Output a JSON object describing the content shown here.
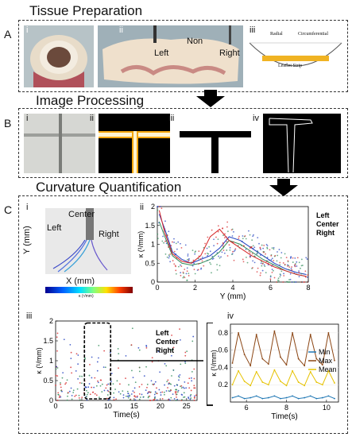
{
  "sections": {
    "a_title": "Tissue Preparation",
    "b_title": "Image Processing",
    "c_title": "Curvature Quantification"
  },
  "panel_letters": {
    "a": "A",
    "b": "B",
    "c": "C"
  },
  "subpanels": {
    "a": [
      "i",
      "ii",
      "iii"
    ],
    "b": [
      "i",
      "ii",
      "iii",
      "iv"
    ],
    "c": [
      "i",
      "ii",
      "iii",
      "iv"
    ]
  },
  "a_ii_labels": {
    "left": "Left",
    "non": "Non",
    "right": "Right"
  },
  "a_iii_labels": {
    "radial": "Radial",
    "circumferential": "Circumferential",
    "strip": "Leaflet Strip"
  },
  "c_i_labels": {
    "center": "Center",
    "left": "Left",
    "right": "Right",
    "y_axis": "Y (mm)",
    "x_axis": "X (mm)",
    "colorbar": "κ (¹/mm)"
  },
  "colors": {
    "left": "#1f3fbf",
    "center": "#2e8b57",
    "right": "#d62728",
    "min": "#1f77b4",
    "max": "#8b4513",
    "mean": "#e6c200"
  },
  "chart_data": [
    {
      "id": "c_ii",
      "type": "scatter",
      "xlabel": "Y (mm)",
      "ylabel": "κ (¹/mm)",
      "xlim": [
        0,
        8
      ],
      "ylim": [
        0,
        2
      ],
      "xticks": [
        "0",
        "2",
        "4",
        "6",
        "8"
      ],
      "yticks": [
        "0",
        "0.5",
        "1",
        "1.5",
        "2"
      ],
      "legend": [
        "Left",
        "Center",
        "Right"
      ],
      "legend_position": "top-right",
      "series": [
        {
          "name": "Left",
          "x": [
            0.1,
            0.4,
            0.8,
            1.3,
            1.8,
            2.3,
            2.8,
            3.3,
            3.8,
            4.4,
            5.0,
            5.6,
            6.2,
            6.8,
            7.4,
            7.9
          ],
          "y": [
            1.8,
            1.4,
            0.8,
            0.6,
            0.5,
            0.6,
            0.7,
            0.9,
            1.2,
            1.1,
            0.9,
            0.7,
            0.5,
            0.35,
            0.25,
            0.2
          ]
        },
        {
          "name": "Center",
          "x": [
            0.1,
            0.4,
            0.8,
            1.3,
            1.8,
            2.3,
            2.8,
            3.3,
            3.8,
            4.4,
            5.0,
            5.6,
            6.2,
            6.8,
            7.4,
            7.9
          ],
          "y": [
            1.6,
            1.2,
            0.7,
            0.5,
            0.45,
            0.5,
            0.6,
            0.8,
            1.1,
            1.0,
            0.8,
            0.6,
            0.45,
            0.3,
            0.2,
            0.15
          ]
        },
        {
          "name": "Right",
          "x": [
            0.1,
            0.4,
            0.8,
            1.3,
            1.8,
            2.3,
            2.8,
            3.3,
            3.8,
            4.4,
            5.0,
            5.6,
            6.2,
            6.8,
            7.4,
            7.9
          ],
          "y": [
            1.9,
            1.3,
            0.75,
            0.55,
            0.5,
            0.7,
            1.2,
            1.4,
            1.1,
            0.9,
            0.7,
            0.55,
            0.4,
            0.3,
            0.2,
            0.15
          ]
        }
      ]
    },
    {
      "id": "c_iii",
      "type": "scatter",
      "xlabel": "Time(s)",
      "ylabel": "κ (¹/mm)",
      "xlim": [
        0,
        27
      ],
      "ylim": [
        0,
        2
      ],
      "xticks": [
        "0",
        "5",
        "10",
        "15",
        "20",
        "25"
      ],
      "yticks": [
        "0",
        "0.5",
        "1",
        "1.5",
        "2"
      ],
      "legend": [
        "Left",
        "Center",
        "Right"
      ],
      "legend_position": "top-right",
      "highlight_window": [
        5.5,
        10.5
      ]
    },
    {
      "id": "c_iv",
      "type": "line",
      "xlabel": "Time(s)",
      "ylabel": "κ (¹/mm)",
      "xlim": [
        5.2,
        10.6
      ],
      "ylim": [
        0,
        0.9
      ],
      "xticks": [
        "6",
        "8",
        "10"
      ],
      "yticks": [
        "0.2",
        "0.4",
        "0.6",
        "0.8"
      ],
      "legend": [
        "Min",
        "Max",
        "Mean"
      ],
      "legend_position": "right",
      "series": [
        {
          "name": "Max",
          "x": [
            5.3,
            5.6,
            5.9,
            6.2,
            6.5,
            6.8,
            7.1,
            7.4,
            7.7,
            8.0,
            8.3,
            8.6,
            8.9,
            9.2,
            9.5,
            9.8,
            10.1,
            10.4
          ],
          "y": [
            0.45,
            0.8,
            0.55,
            0.42,
            0.78,
            0.5,
            0.44,
            0.82,
            0.52,
            0.43,
            0.8,
            0.5,
            0.42,
            0.78,
            0.5,
            0.43,
            0.8,
            0.48
          ]
        },
        {
          "name": "Mean",
          "x": [
            5.3,
            5.6,
            5.9,
            6.2,
            6.5,
            6.8,
            7.1,
            7.4,
            7.7,
            8.0,
            8.3,
            8.6,
            8.9,
            9.2,
            9.5,
            9.8,
            10.1,
            10.4
          ],
          "y": [
            0.2,
            0.36,
            0.24,
            0.19,
            0.35,
            0.23,
            0.2,
            0.37,
            0.24,
            0.19,
            0.36,
            0.23,
            0.19,
            0.35,
            0.23,
            0.2,
            0.36,
            0.22
          ]
        },
        {
          "name": "Min",
          "x": [
            5.3,
            5.6,
            5.9,
            6.2,
            6.5,
            6.8,
            7.1,
            7.4,
            7.7,
            8.0,
            8.3,
            8.6,
            8.9,
            9.2,
            9.5,
            9.8,
            10.1,
            10.4
          ],
          "y": [
            0.05,
            0.07,
            0.04,
            0.05,
            0.07,
            0.04,
            0.05,
            0.07,
            0.04,
            0.05,
            0.07,
            0.04,
            0.05,
            0.07,
            0.04,
            0.05,
            0.07,
            0.04
          ]
        }
      ]
    }
  ]
}
